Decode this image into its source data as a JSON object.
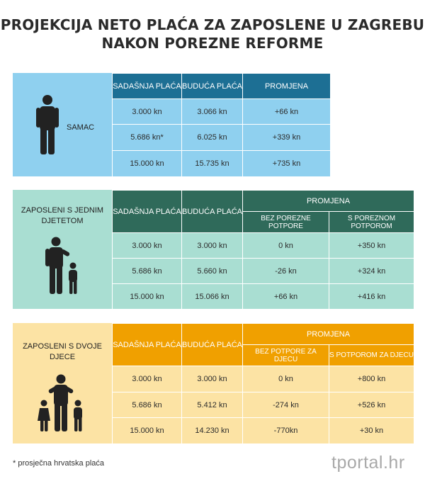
{
  "title": {
    "line1": "PROJEKCIJA NETO  PLAĆA ZA ZAPOSLENE U ZAGREBU",
    "line2": "NAKON POREZNE REFORME"
  },
  "colors": {
    "blue_header": "#1d6f94",
    "blue_body": "#8fd0ef",
    "green_header": "#2f6a5a",
    "green_body": "#a9ded2",
    "orange_header": "#f0a000",
    "orange_body": "#fce3a4",
    "icon": "#222222"
  },
  "table1": {
    "side_label": "SAMAC",
    "icon": "person-icon",
    "headers": [
      "SADAŠNJA PLAĆA",
      "BUDUĆA PLAĆA",
      "PROMJENA"
    ],
    "rows": [
      [
        "3.000 kn",
        "3.066 kn",
        "+66 kn"
      ],
      [
        "5.686 kn*",
        "6.025 kn",
        "+339 kn"
      ],
      [
        "15.000 kn",
        "15.735 kn",
        "+735 kn"
      ]
    ]
  },
  "table2": {
    "side_label": "ZAPOSLENI S JEDNIM DJETETOM",
    "icon": "parent-one-child-icon",
    "headers": [
      "SADAŠNJA PLAĆA",
      "BUDUĆA PLAĆA",
      "PROMJENA"
    ],
    "subheaders": [
      "BEZ POREZNE POTPORE",
      "S POREZNOM POTPOROM"
    ],
    "rows": [
      [
        "3.000 kn",
        "3.000 kn",
        "0 kn",
        "+350 kn"
      ],
      [
        "5.686 kn",
        "5.660 kn",
        "-26 kn",
        "+324 kn"
      ],
      [
        "15.000 kn",
        "15.066 kn",
        "+66 kn",
        "+416 kn"
      ]
    ]
  },
  "table3": {
    "side_label": "ZAPOSLENI S DVOJE DJECE",
    "icon": "parent-two-children-icon",
    "headers": [
      "SADAŠNJA PLAĆA",
      "BUDUĆA PLAĆA",
      "PROMJENA"
    ],
    "subheaders": [
      "BEZ POTPORE ZA DJECU",
      "S POTPOROM ZA DJECU"
    ],
    "rows": [
      [
        "3.000 kn",
        "3.000 kn",
        "0 kn",
        "+800 kn"
      ],
      [
        "5.686 kn",
        "5.412 kn",
        "-274 kn",
        "+526 kn"
      ],
      [
        "15.000 kn",
        "14.230 kn",
        "-770kn",
        "+30 kn"
      ]
    ]
  },
  "footnote": "* prosječna hrvatska plaća",
  "logo": "tportal.hr"
}
